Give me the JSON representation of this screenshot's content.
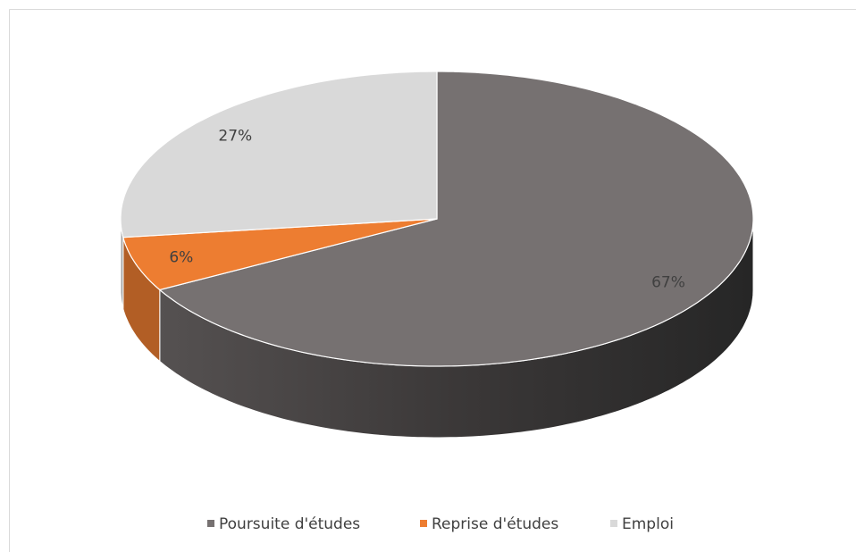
{
  "chart_data": {
    "type": "pie3d",
    "categories": [
      "Poursuite d'études",
      "Reprise d'études",
      "Emploi"
    ],
    "values": [
      67,
      6,
      27
    ],
    "value_labels": [
      "67%",
      "6%",
      "27%"
    ],
    "colors": [
      "#767171",
      "#ed7d31",
      "#d9d9d9"
    ],
    "legend": "bottom"
  }
}
